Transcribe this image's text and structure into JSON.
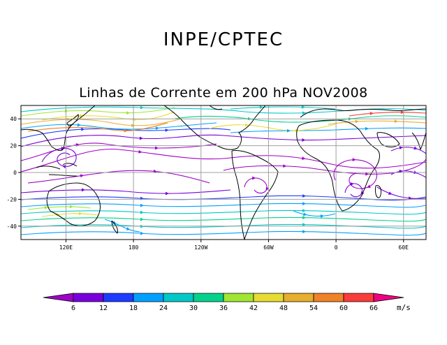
{
  "header": {
    "organization": "INPE/CPTEC",
    "title": "Linhas de Corrente em 200 hPa NOV2008"
  },
  "map": {
    "lon_ticks": [
      "120E",
      "180",
      "120W",
      "60W",
      "0",
      "60E"
    ],
    "lat_ticks": [
      "40",
      "20",
      "0",
      "-20",
      "-40"
    ],
    "lon_range_deg": [
      80,
      440
    ],
    "lat_range_deg": [
      -50,
      50
    ],
    "grid_lon_step_deg": 30,
    "grid_lat_step_deg": 10
  },
  "colorbar": {
    "unit": "m/s",
    "labels": [
      "6",
      "12",
      "18",
      "24",
      "30",
      "36",
      "42",
      "48",
      "54",
      "60",
      "66"
    ],
    "colors": [
      "#a000c8",
      "#7800dc",
      "#1e3cff",
      "#00a0ff",
      "#00c8c8",
      "#00d28c",
      "#a0e632",
      "#e6dc32",
      "#e6af2d",
      "#f08228",
      "#fa3c3c",
      "#f00082"
    ]
  }
}
